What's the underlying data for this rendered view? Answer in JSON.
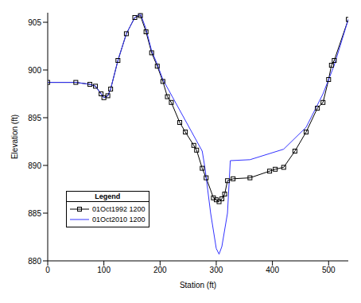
{
  "chart_data": {
    "type": "line",
    "xlabel": "Station (ft)",
    "ylabel": "Elevation (ft)",
    "legend_title": "Legend",
    "legend": "lower left",
    "grid": false,
    "xlim": [
      0,
      535
    ],
    "ylim": [
      880,
      906
    ],
    "xticks": [
      0,
      100,
      200,
      300,
      400,
      500
    ],
    "yticks": [
      880,
      885,
      890,
      895,
      900,
      905
    ],
    "series": [
      {
        "name": "01Oct1992 1200",
        "color": "#000000",
        "marker": "square",
        "line_style": "solid",
        "x": [
          0,
          50,
          75,
          85,
          95,
          100,
          107,
          112,
          125,
          140,
          155,
          165,
          175,
          185,
          195,
          205,
          213,
          220,
          235,
          245,
          260,
          265,
          275,
          282,
          295,
          300,
          305,
          310,
          315,
          320,
          330,
          360,
          395,
          405,
          420,
          440,
          460,
          480,
          490,
          500,
          505,
          510,
          535
        ],
        "values": [
          898.7,
          898.7,
          898.5,
          898.3,
          897.5,
          897.1,
          897.3,
          898,
          901,
          903.8,
          905.5,
          905.7,
          904,
          901.8,
          900.4,
          898.8,
          897.2,
          896.6,
          894.5,
          893.5,
          892.1,
          891.6,
          889.7,
          888.7,
          886.6,
          886.4,
          886.2,
          886.5,
          887,
          888.4,
          888.6,
          888.7,
          889.4,
          889.6,
          889.8,
          891.5,
          893.5,
          896,
          896.6,
          899,
          900.5,
          901,
          905.3
        ]
      },
      {
        "name": "01Oct2010 1200",
        "color": "#3333ff",
        "marker": "none",
        "line_style": "solid",
        "x": [
          0,
          50,
          75,
          85,
          95,
          100,
          107,
          112,
          125,
          140,
          155,
          165,
          175,
          185,
          195,
          205,
          275,
          280,
          290,
          300,
          305,
          310,
          320,
          325,
          360,
          420,
          460,
          490,
          510,
          535
        ],
        "values": [
          898.7,
          898.7,
          898.5,
          898.3,
          897.5,
          897.1,
          897.3,
          898,
          901,
          903.8,
          905.5,
          905.9,
          904.3,
          902,
          900.6,
          899,
          891.5,
          889.7,
          885,
          881.3,
          880.7,
          881.5,
          885,
          890.5,
          890.6,
          891.7,
          894,
          897.5,
          900.5,
          905.3
        ]
      }
    ]
  }
}
